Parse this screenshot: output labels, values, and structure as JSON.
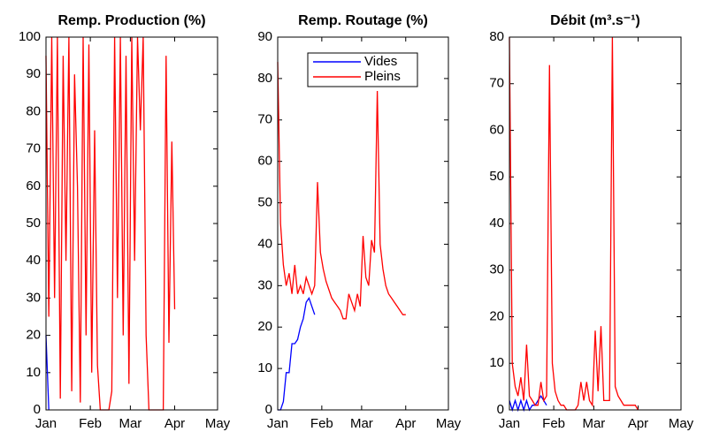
{
  "chart_data": [
    {
      "type": "line",
      "title": "Remp. Production (%)",
      "x": [
        0,
        2,
        4,
        6,
        8,
        10,
        12,
        14,
        16,
        18,
        20,
        22,
        24,
        26,
        28,
        30,
        32,
        34,
        36,
        38,
        40,
        42,
        44,
        46,
        48,
        50,
        52,
        54,
        56,
        58,
        60,
        62,
        64,
        66,
        68,
        70,
        72,
        74,
        76,
        78,
        80,
        82,
        84,
        86,
        88,
        90
      ],
      "series": [
        {
          "name": "Vides",
          "color": "#0000ff",
          "values": [
            20,
            0,
            null,
            null,
            null,
            null,
            null,
            null,
            null,
            null,
            null,
            null,
            null,
            null,
            null,
            null,
            null,
            null,
            null,
            null,
            null,
            null,
            null,
            null,
            null,
            null,
            null,
            null,
            null,
            null,
            null,
            null,
            null,
            null,
            null,
            null,
            null,
            null,
            null,
            null,
            null,
            null,
            null,
            null,
            null,
            null
          ]
        },
        {
          "name": "Pleins",
          "color": "#ff0000",
          "values": [
            95,
            25,
            100,
            30,
            100,
            3,
            95,
            40,
            100,
            5,
            90,
            60,
            2,
            100,
            20,
            98,
            10,
            75,
            12,
            0,
            0,
            0,
            0,
            5,
            100,
            30,
            100,
            20,
            95,
            7,
            100,
            40,
            100,
            75,
            100,
            20,
            0,
            0,
            0,
            0,
            0,
            0,
            95,
            18,
            72,
            27
          ]
        }
      ],
      "xlim": [
        0,
        120
      ],
      "xticks": [
        {
          "value": 0,
          "label": "Jan"
        },
        {
          "value": 31,
          "label": "Feb"
        },
        {
          "value": 59,
          "label": "Mar"
        },
        {
          "value": 90,
          "label": "Apr"
        },
        {
          "value": 120,
          "label": "May"
        }
      ],
      "ylim": [
        0,
        100
      ],
      "yticks": [
        0,
        10,
        20,
        30,
        40,
        50,
        60,
        70,
        80,
        90,
        100
      ],
      "legend": false
    },
    {
      "type": "line",
      "title": "Remp. Routage (%)",
      "x": [
        0,
        2,
        4,
        6,
        8,
        10,
        12,
        14,
        16,
        18,
        20,
        22,
        24,
        26,
        28,
        30,
        32,
        34,
        36,
        38,
        40,
        42,
        44,
        46,
        48,
        50,
        52,
        54,
        56,
        58,
        60,
        62,
        64,
        66,
        68,
        70,
        72,
        74,
        76,
        78,
        80,
        82,
        84,
        86,
        88,
        90
      ],
      "series": [
        {
          "name": "Vides",
          "color": "#0000ff",
          "values": [
            0,
            0,
            2,
            9,
            9,
            16,
            16,
            17,
            20,
            22,
            26,
            27,
            25,
            23,
            null,
            null,
            null,
            null,
            null,
            null,
            null,
            null,
            null,
            null,
            null,
            null,
            null,
            null,
            null,
            null,
            null,
            null,
            null,
            null,
            null,
            null,
            null,
            null,
            null,
            null,
            null,
            null,
            null,
            null,
            null,
            null
          ]
        },
        {
          "name": "Pleins",
          "color": "#ff0000",
          "values": [
            84,
            45,
            35,
            30,
            33,
            28,
            35,
            28,
            30,
            28,
            32,
            30,
            28,
            30,
            55,
            38,
            34,
            31,
            29,
            27,
            26,
            25,
            24,
            22,
            22,
            28,
            26,
            24,
            28,
            25,
            42,
            32,
            30,
            41,
            38,
            77,
            40,
            34,
            30,
            28,
            27,
            26,
            25,
            24,
            23,
            23
          ]
        }
      ],
      "xlim": [
        0,
        120
      ],
      "xticks": [
        {
          "value": 0,
          "label": "Jan"
        },
        {
          "value": 31,
          "label": "Feb"
        },
        {
          "value": 59,
          "label": "Mar"
        },
        {
          "value": 90,
          "label": "Apr"
        },
        {
          "value": 120,
          "label": "May"
        }
      ],
      "ylim": [
        0,
        90
      ],
      "yticks": [
        0,
        10,
        20,
        30,
        40,
        50,
        60,
        70,
        80,
        90
      ],
      "legend": "upper center"
    },
    {
      "type": "line",
      "title": "Débit (m³.s⁻¹)",
      "x": [
        0,
        2,
        4,
        6,
        8,
        10,
        12,
        14,
        16,
        18,
        20,
        22,
        24,
        26,
        28,
        30,
        32,
        34,
        36,
        38,
        40,
        42,
        44,
        46,
        48,
        50,
        52,
        54,
        56,
        58,
        60,
        62,
        64,
        66,
        68,
        70,
        72,
        74,
        76,
        78,
        80,
        82,
        84,
        86,
        88,
        90
      ],
      "series": [
        {
          "name": "Vides",
          "color": "#0000ff",
          "values": [
            2,
            0,
            2,
            0,
            2,
            0,
            2,
            0,
            1,
            1,
            2,
            3,
            2,
            1,
            null,
            null,
            null,
            null,
            null,
            null,
            null,
            null,
            null,
            null,
            null,
            null,
            null,
            null,
            null,
            null,
            null,
            null,
            null,
            null,
            null,
            null,
            null,
            null,
            null,
            null,
            null,
            null,
            null,
            null,
            null,
            null
          ]
        },
        {
          "name": "Pleins",
          "color": "#ff0000",
          "values": [
            80,
            10,
            5,
            3,
            7,
            2,
            14,
            3,
            2,
            1,
            1,
            6,
            2,
            3,
            74,
            10,
            4,
            2,
            1,
            1,
            0,
            0,
            0,
            0,
            1,
            6,
            2,
            6,
            2,
            1,
            17,
            4,
            18,
            2,
            2,
            2,
            80,
            5,
            3,
            2,
            1,
            1,
            1,
            1,
            1,
            0
          ]
        }
      ],
      "xlim": [
        0,
        120
      ],
      "xticks": [
        {
          "value": 0,
          "label": "Jan"
        },
        {
          "value": 31,
          "label": "Feb"
        },
        {
          "value": 59,
          "label": "Mar"
        },
        {
          "value": 90,
          "label": "Apr"
        },
        {
          "value": 120,
          "label": "May"
        }
      ],
      "ylim": [
        0,
        80
      ],
      "yticks": [
        0,
        10,
        20,
        30,
        40,
        50,
        60,
        70,
        80
      ],
      "legend": false
    }
  ]
}
